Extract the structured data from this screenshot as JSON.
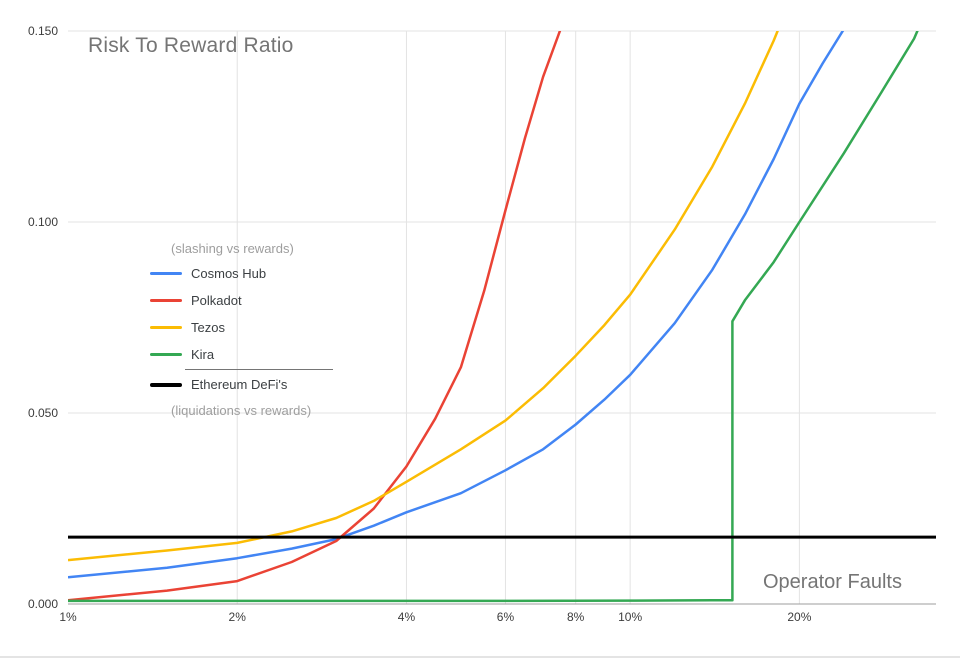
{
  "chart_data": {
    "type": "line",
    "title": "Risk To Reward Ratio",
    "x_axis_label": "Operator Faults",
    "x_scale": "log",
    "x_range": [
      1,
      35
    ],
    "y_range": [
      0,
      0.15
    ],
    "grid": true,
    "legend_position": "inside-left",
    "x_ticks": [
      {
        "label": "1%",
        "value": 1
      },
      {
        "label": "2%",
        "value": 2
      },
      {
        "label": "4%",
        "value": 4
      },
      {
        "label": "6%",
        "value": 6
      },
      {
        "label": "8%",
        "value": 8
      },
      {
        "label": "10%",
        "value": 10
      },
      {
        "label": "20%",
        "value": 20
      }
    ],
    "y_ticks": [
      {
        "label": "0.000",
        "value": 0
      },
      {
        "label": "0.050",
        "value": 0.05
      },
      {
        "label": "0.100",
        "value": 0.1
      },
      {
        "label": "0.150",
        "value": 0.15
      }
    ],
    "legend": {
      "note_top": "(slashing vs rewards)",
      "note_bottom": "(liquidations vs rewards)",
      "divider_before": "Ethereum DeFi's"
    },
    "series": [
      {
        "name": "Cosmos Hub",
        "color": "#4285f4",
        "width": 2.5,
        "points": [
          [
            1,
            0.007
          ],
          [
            1.5,
            0.0095
          ],
          [
            2,
            0.012
          ],
          [
            2.5,
            0.0145
          ],
          [
            3,
            0.017
          ],
          [
            3.5,
            0.0205
          ],
          [
            4,
            0.024
          ],
          [
            5,
            0.029
          ],
          [
            6,
            0.035
          ],
          [
            7,
            0.0405
          ],
          [
            8,
            0.047
          ],
          [
            9,
            0.0535
          ],
          [
            10,
            0.06
          ],
          [
            12,
            0.0735
          ],
          [
            14,
            0.0875
          ],
          [
            16,
            0.102
          ],
          [
            18,
            0.1165
          ],
          [
            20,
            0.131
          ],
          [
            22,
            0.1415
          ],
          [
            24,
            0.1505
          ],
          [
            25,
            0.156
          ]
        ]
      },
      {
        "name": "Polkadot",
        "color": "#ea4335",
        "width": 2.5,
        "points": [
          [
            1,
            0.001
          ],
          [
            1.5,
            0.0035
          ],
          [
            2,
            0.006
          ],
          [
            2.5,
            0.011
          ],
          [
            3,
            0.0165
          ],
          [
            3.5,
            0.025
          ],
          [
            4,
            0.036
          ],
          [
            4.5,
            0.0485
          ],
          [
            5,
            0.062
          ],
          [
            5.5,
            0.082
          ],
          [
            6,
            0.103
          ],
          [
            6.5,
            0.122
          ],
          [
            7,
            0.138
          ],
          [
            7.5,
            0.15
          ],
          [
            7.8,
            0.158
          ]
        ]
      },
      {
        "name": "Tezos",
        "color": "#fbbc04",
        "width": 2.5,
        "points": [
          [
            1,
            0.0115
          ],
          [
            1.5,
            0.014
          ],
          [
            2,
            0.016
          ],
          [
            2.5,
            0.019
          ],
          [
            3,
            0.0225
          ],
          [
            3.5,
            0.027
          ],
          [
            4,
            0.032
          ],
          [
            5,
            0.0405
          ],
          [
            6,
            0.048
          ],
          [
            7,
            0.0565
          ],
          [
            8,
            0.065
          ],
          [
            9,
            0.073
          ],
          [
            10,
            0.081
          ],
          [
            12,
            0.098
          ],
          [
            14,
            0.1145
          ],
          [
            16,
            0.131
          ],
          [
            18,
            0.1475
          ],
          [
            19,
            0.156
          ]
        ]
      },
      {
        "name": "Kira",
        "color": "#34a853",
        "width": 2.5,
        "points": [
          [
            1,
            0.0008
          ],
          [
            6,
            0.0008
          ],
          [
            10,
            0.0009
          ],
          [
            14,
            0.001
          ],
          [
            15.2,
            0.001
          ],
          [
            15.2,
            0.074
          ],
          [
            16,
            0.0795
          ],
          [
            18,
            0.0895
          ],
          [
            20,
            0.1
          ],
          [
            24,
            0.118
          ],
          [
            28,
            0.134
          ],
          [
            32,
            0.148
          ],
          [
            34,
            0.157
          ]
        ]
      },
      {
        "name": "Ethereum DeFi's",
        "color": "#000000",
        "width": 3,
        "points": [
          [
            1,
            0.0175
          ],
          [
            35,
            0.0175
          ]
        ]
      }
    ],
    "style": {
      "gridline_color": "#e3e3e3",
      "baseline_color": "#9e9e9e",
      "tick_label_color": "#3c3c3c",
      "title_color": "#757575"
    }
  }
}
